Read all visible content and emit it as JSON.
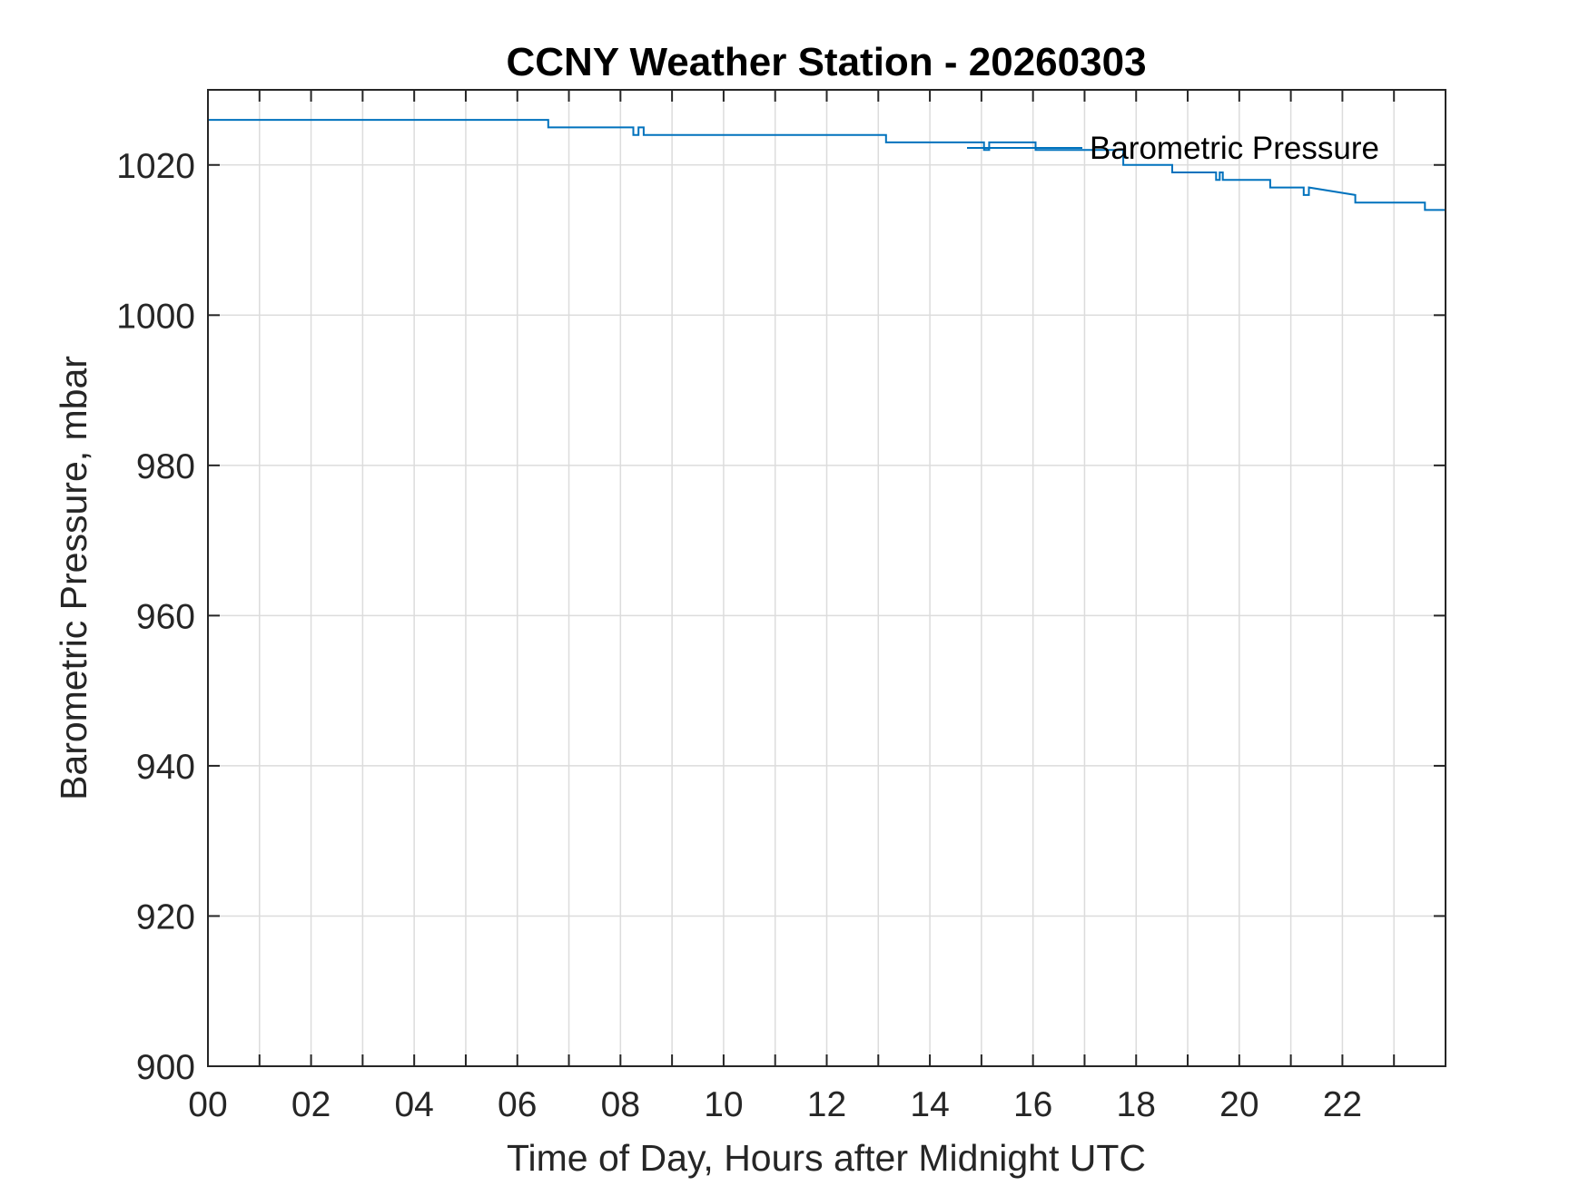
{
  "chart_data": {
    "type": "line",
    "title": "CCNY Weather Station - 20260303",
    "xlabel": "Time of Day, Hours after Midnight UTC",
    "ylabel": "Barometric Pressure, mbar",
    "xlim": [
      0,
      24
    ],
    "ylim": [
      900,
      1030
    ],
    "xticks": [
      0,
      2,
      4,
      6,
      8,
      10,
      12,
      14,
      16,
      18,
      20,
      22
    ],
    "xtick_labels": [
      "00",
      "02",
      "04",
      "06",
      "08",
      "10",
      "12",
      "14",
      "16",
      "18",
      "20",
      "22"
    ],
    "yticks": [
      900,
      920,
      940,
      960,
      980,
      1000,
      1020
    ],
    "ytick_labels": [
      "900",
      "920",
      "940",
      "960",
      "980",
      "1000",
      "1020"
    ],
    "grid": true,
    "legend": {
      "position": "top-right",
      "entries": [
        "Barometric Pressure"
      ]
    },
    "colors": {
      "series": "#0072bd",
      "axes": "#262626",
      "grid": "#dcdcdc"
    },
    "series": [
      {
        "name": "Barometric Pressure",
        "x": [
          0,
          6.6,
          6.6,
          8.25,
          8.25,
          8.35,
          8.35,
          8.45,
          8.45,
          8.52,
          8.52,
          13.15,
          13.15,
          15.05,
          15.05,
          15.15,
          15.15,
          16.05,
          16.05,
          17.75,
          17.75,
          18.7,
          18.7,
          19.55,
          19.55,
          19.62,
          19.62,
          19.68,
          19.68,
          20.6,
          20.6,
          21.25,
          21.25,
          21.35,
          21.35,
          22.25,
          22.25,
          23.6,
          23.6,
          24
        ],
        "y": [
          1026,
          1026,
          1025,
          1025,
          1024,
          1024,
          1025,
          1025,
          1024,
          1024,
          1024,
          1024,
          1023,
          1023,
          1022,
          1022,
          1023,
          1023,
          1022,
          1022,
          1020,
          1020,
          1019,
          1019,
          1018,
          1018,
          1019,
          1019,
          1018,
          1018,
          1017,
          1017,
          1016,
          1016,
          1017,
          1016,
          1015,
          1015,
          1014,
          1014
        ]
      }
    ]
  }
}
